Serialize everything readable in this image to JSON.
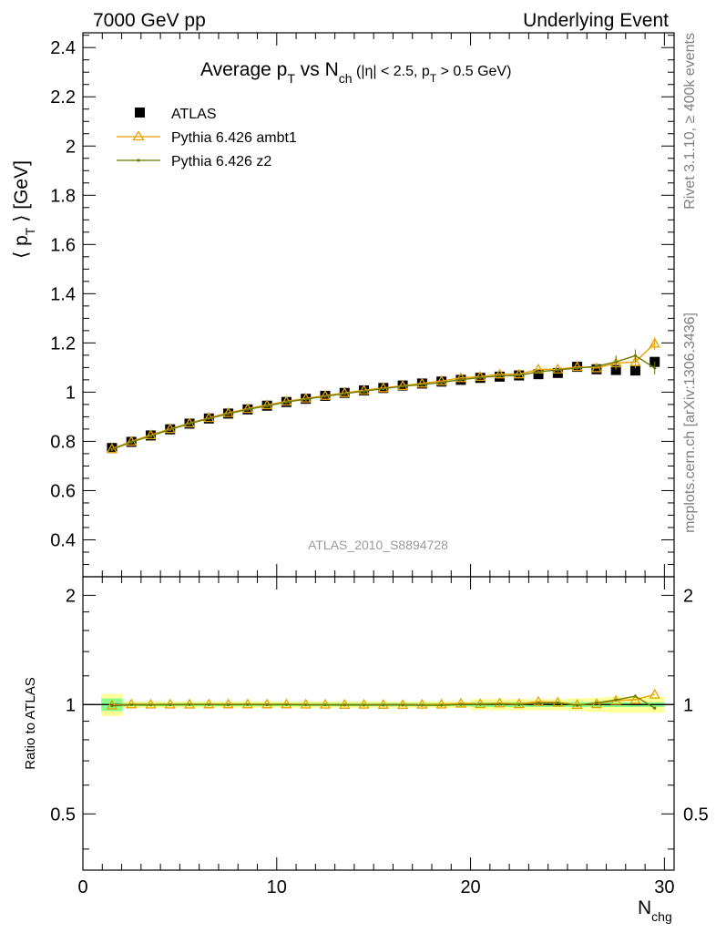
{
  "header": {
    "left": "7000 GeV pp",
    "right": "Underlying Event"
  },
  "title": {
    "main": "Average p",
    "main_sub": "T",
    "vs": " vs N",
    "vs_sub": "ch",
    "cuts_a": " (|η| < 2.5, p",
    "cuts_sub": "T",
    "cuts_b": " > 0.5 GeV)"
  },
  "y_label": {
    "pre": "⟨ p",
    "sub": "T",
    "post": " ⟩ [GeV]"
  },
  "ratio_y_label": "Ratio to ATLAS",
  "x_label": {
    "main": "N",
    "sub": "chg"
  },
  "side_text": {
    "top": "Rivet 3.1.10, ≥ 400k events",
    "bottom": "mcplots.cern.ch [arXiv:1306.3436]"
  },
  "analysis_id": "ATLAS_2010_S8894728",
  "colors": {
    "data": "#000000",
    "ambt1": "#e8a200",
    "z2": "#6b7a00",
    "band_inner": "#88ff88",
    "band_outer": "#ffff99"
  },
  "chart_data": [
    {
      "type": "scatter",
      "title": "Average pT vs Nch (|η| < 2.5, pT > 0.5 GeV)",
      "xlabel": "Nchg",
      "ylabel": "⟨ pT ⟩ [GeV]",
      "xlim": [
        0,
        30.5
      ],
      "ylim": [
        0.25,
        2.46
      ],
      "xticks": [
        "0",
        "10",
        "20",
        "30"
      ],
      "yticks": [
        "0.4",
        "0.6",
        "0.8",
        "1",
        "1.2",
        "1.4",
        "1.6",
        "1.8",
        "2",
        "2.2",
        "2.4"
      ],
      "legend_position": "top-left",
      "x": [
        1.5,
        2.5,
        3.5,
        4.5,
        5.5,
        6.5,
        7.5,
        8.5,
        9.5,
        10.5,
        11.5,
        12.5,
        13.5,
        14.5,
        15.5,
        16.5,
        17.5,
        18.5,
        19.5,
        20.5,
        21.5,
        22.5,
        23.5,
        24.5,
        25.5,
        26.5,
        27.5,
        28.5,
        29.5
      ],
      "series": [
        {
          "name": "ATLAS",
          "marker": "square",
          "values": [
            0.773,
            0.798,
            0.824,
            0.849,
            0.872,
            0.893,
            0.913,
            0.93,
            0.945,
            0.96,
            0.973,
            0.985,
            0.997,
            1.007,
            1.017,
            1.027,
            1.035,
            1.043,
            1.05,
            1.058,
            1.063,
            1.068,
            1.073,
            1.078,
            1.103,
            1.093,
            1.09,
            1.088,
            1.123
          ]
        },
        {
          "name": "Pythia 6.426 ambt1",
          "marker": "open-triangle",
          "values": [
            0.77,
            0.8,
            0.826,
            0.851,
            0.874,
            0.896,
            0.916,
            0.933,
            0.948,
            0.963,
            0.975,
            0.986,
            0.997,
            1.008,
            1.017,
            1.026,
            1.036,
            1.045,
            1.058,
            1.063,
            1.073,
            1.073,
            1.093,
            1.093,
            1.103,
            1.098,
            1.118,
            1.123,
            1.198
          ]
        },
        {
          "name": "Pythia 6.426 z2",
          "marker": "dot",
          "values": [
            0.767,
            0.797,
            0.822,
            0.848,
            0.872,
            0.893,
            0.912,
            0.93,
            0.944,
            0.96,
            0.971,
            0.983,
            0.994,
            1.004,
            1.014,
            1.024,
            1.031,
            1.039,
            1.051,
            1.059,
            1.066,
            1.068,
            1.083,
            1.09,
            1.098,
            1.105,
            1.123,
            1.148,
            1.098
          ]
        }
      ]
    },
    {
      "type": "line",
      "title": "",
      "xlabel": "Nchg",
      "ylabel": "Ratio to ATLAS",
      "xlim": [
        0,
        30.5
      ],
      "ylim": [
        0.35,
        2.25
      ],
      "yscale": "log",
      "yticks": [
        "0.5",
        "1",
        "2"
      ],
      "x": [
        1.5,
        2.5,
        3.5,
        4.5,
        5.5,
        6.5,
        7.5,
        8.5,
        9.5,
        10.5,
        11.5,
        12.5,
        13.5,
        14.5,
        15.5,
        16.5,
        17.5,
        18.5,
        19.5,
        20.5,
        21.5,
        22.5,
        23.5,
        24.5,
        25.5,
        26.5,
        27.5,
        28.5,
        29.5
      ],
      "band_inner_halfwidth": [
        0.04,
        0.01,
        0.01,
        0.01,
        0.01,
        0.01,
        0.01,
        0.01,
        0.01,
        0.01,
        0.01,
        0.01,
        0.01,
        0.01,
        0.01,
        0.01,
        0.01,
        0.01,
        0.01,
        0.015,
        0.015,
        0.015,
        0.015,
        0.015,
        0.015,
        0.015,
        0.015,
        0.015,
        0.015
      ],
      "band_outer_halfwidth": [
        0.07,
        0.02,
        0.02,
        0.02,
        0.02,
        0.02,
        0.02,
        0.02,
        0.02,
        0.02,
        0.02,
        0.02,
        0.02,
        0.02,
        0.02,
        0.02,
        0.02,
        0.02,
        0.02,
        0.035,
        0.035,
        0.035,
        0.035,
        0.035,
        0.04,
        0.045,
        0.05,
        0.05,
        0.05
      ],
      "series": [
        {
          "name": "Pythia 6.426 ambt1",
          "values": [
            0.996,
            1.003,
            1.002,
            1.002,
            1.002,
            1.003,
            1.003,
            1.003,
            1.003,
            1.003,
            1.002,
            1.001,
            1.0,
            1.001,
            1.0,
            0.999,
            1.001,
            1.002,
            1.008,
            1.005,
            1.009,
            1.005,
            1.019,
            1.014,
            1.0,
            1.005,
            1.026,
            1.032,
            1.067
          ]
        },
        {
          "name": "Pythia 6.426 z2",
          "values": [
            0.992,
            0.999,
            0.998,
            0.999,
            1.0,
            1.0,
            0.999,
            1.0,
            0.999,
            1.0,
            0.998,
            0.998,
            0.997,
            0.997,
            0.997,
            0.997,
            0.996,
            0.996,
            1.001,
            1.001,
            1.003,
            1.0,
            1.009,
            1.011,
            0.995,
            1.011,
            1.03,
            1.055,
            0.978
          ]
        }
      ]
    }
  ]
}
